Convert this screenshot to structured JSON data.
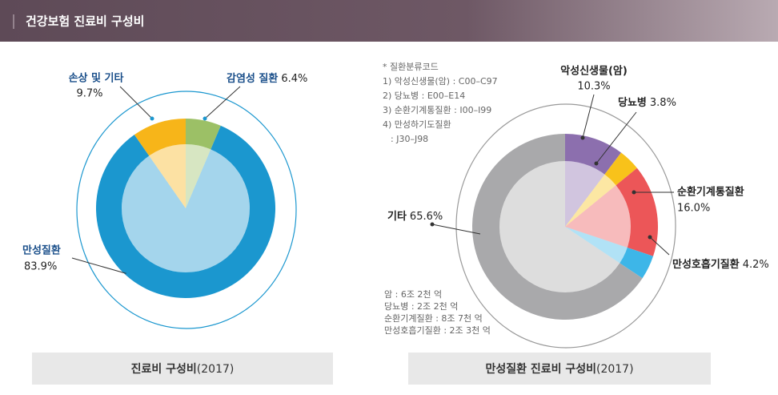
{
  "header": {
    "title": "건강보험 진료비 구성비"
  },
  "chart_data": [
    {
      "type": "donut",
      "categories": [
        "감염성 질환",
        "만성질환",
        "손상 및 기타"
      ],
      "values": [
        6.4,
        83.9,
        9.7
      ],
      "value_labels": [
        "6.4%",
        "83.9%",
        "9.7%"
      ],
      "colors": [
        "#9cc066",
        "#1b97cf",
        "#f7b519"
      ],
      "caption": "진료비 구성비",
      "caption_year": "(2017)"
    },
    {
      "type": "donut",
      "categories": [
        "악성신생물(암)",
        "당뇨병",
        "순환기계통질환",
        "만성호흡기질환",
        "기타"
      ],
      "values": [
        10.3,
        3.8,
        16.0,
        4.2,
        65.6
      ],
      "value_labels": [
        "10.3%",
        "3.8%",
        "16.0%",
        "4.2%",
        "65.6%"
      ],
      "colors": [
        "#8c6fae",
        "#f8c21a",
        "#ec5658",
        "#3db6e8",
        "#a9a9ab"
      ],
      "notes_top": [
        "* 질환분류코드",
        "1) 악성신생물(암) : C00–C97",
        "2) 당뇨병 : E00–E14",
        "3) 순환기계통질환 : I00–I99",
        "4) 만성하기도질환",
        ": J30–J98"
      ],
      "notes_bottom": [
        "암 : 6조 2천 억",
        "당뇨병 : 2조 2천 억",
        "순환기계질환 : 8조 7천 억",
        "만성호흡기질환 : 2조 3천 억"
      ],
      "caption": "만성질환 진료비 구성비",
      "caption_year": "(2017)"
    }
  ]
}
